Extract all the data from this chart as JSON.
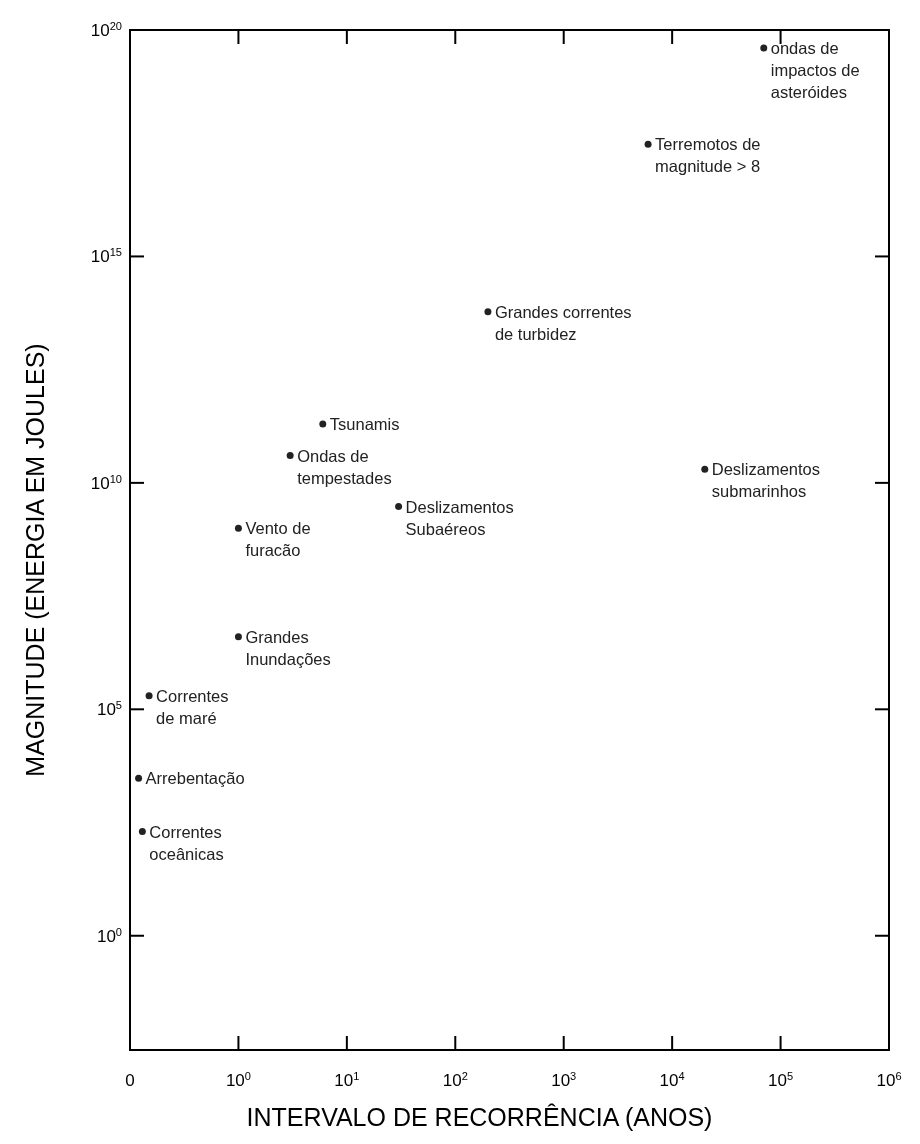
{
  "chart_data": {
    "type": "scatter",
    "xlabel": "INTERVALO DE RECORRÊNCIA (ANOS)",
    "ylabel": "MAGNITUDE (ENERGIA EM JOULES)",
    "log": "xy",
    "marker": "circle",
    "xlim": [
      0.1,
      1000000
    ],
    "ylim": [
      0.003,
      1e+20
    ],
    "xticks": [
      {
        "value": 0.1,
        "label": "0"
      },
      {
        "value": 1,
        "label": "10$^{0}$"
      },
      {
        "value": 10,
        "label": "10$^{1}$"
      },
      {
        "value": 100,
        "label": "10$^{2}$"
      },
      {
        "value": 1000,
        "label": "10$^{3}$"
      },
      {
        "value": 10000,
        "label": "10$^{4}$"
      },
      {
        "value": 100000,
        "label": "10$^{5}$"
      },
      {
        "value": 1000000,
        "label": "10$^{6}$"
      }
    ],
    "yticks": [
      {
        "value": 1,
        "label": "10$^{0}$"
      },
      {
        "value": 100000,
        "label": "10$^{5}$"
      },
      {
        "value": 10000000000,
        "label": "10$^{10}$"
      },
      {
        "value": 1000000000000000.0,
        "label": "10$^{15}$"
      },
      {
        "value": 1e+20,
        "label": "10$^{20}$"
      }
    ],
    "series": [
      {
        "name": "ondas de\nimpactos de\nasteróides",
        "x": [
          70000
        ],
        "values": [
          4e+19
        ]
      },
      {
        "name": "Terremotos de\nmagnitude > 8",
        "x": [
          6000
        ],
        "values": [
          3e+17
        ]
      },
      {
        "name": "Grandes correntes\nde turbidez",
        "x": [
          200
        ],
        "values": [
          60000000000000.0
        ]
      },
      {
        "name": "Tsunamis",
        "x": [
          6
        ],
        "values": [
          200000000000.0
        ]
      },
      {
        "name": "Ondas de\ntempestades",
        "x": [
          3
        ],
        "values": [
          40000000000.0
        ]
      },
      {
        "name": "Deslizamentos\nsubmarinhos",
        "x": [
          20000
        ],
        "values": [
          20000000000.0
        ]
      },
      {
        "name": "Deslizamentos\nSubaéreos",
        "x": [
          30
        ],
        "values": [
          3000000000.0
        ]
      },
      {
        "name": "Vento de\nfuracão",
        "x": [
          1
        ],
        "values": [
          1000000000.0
        ]
      },
      {
        "name": "Grandes\nInundações",
        "x": [
          1
        ],
        "values": [
          4000000.0
        ]
      },
      {
        "name": "Correntes\nde maré",
        "x": [
          0.15
        ],
        "values": [
          200000
        ]
      },
      {
        "name": "Arrebentação",
        "x": [
          0.12
        ],
        "values": [
          3000
        ]
      },
      {
        "name": "Correntes\noceânicas",
        "x": [
          0.13
        ],
        "values": [
          200
        ]
      }
    ]
  }
}
